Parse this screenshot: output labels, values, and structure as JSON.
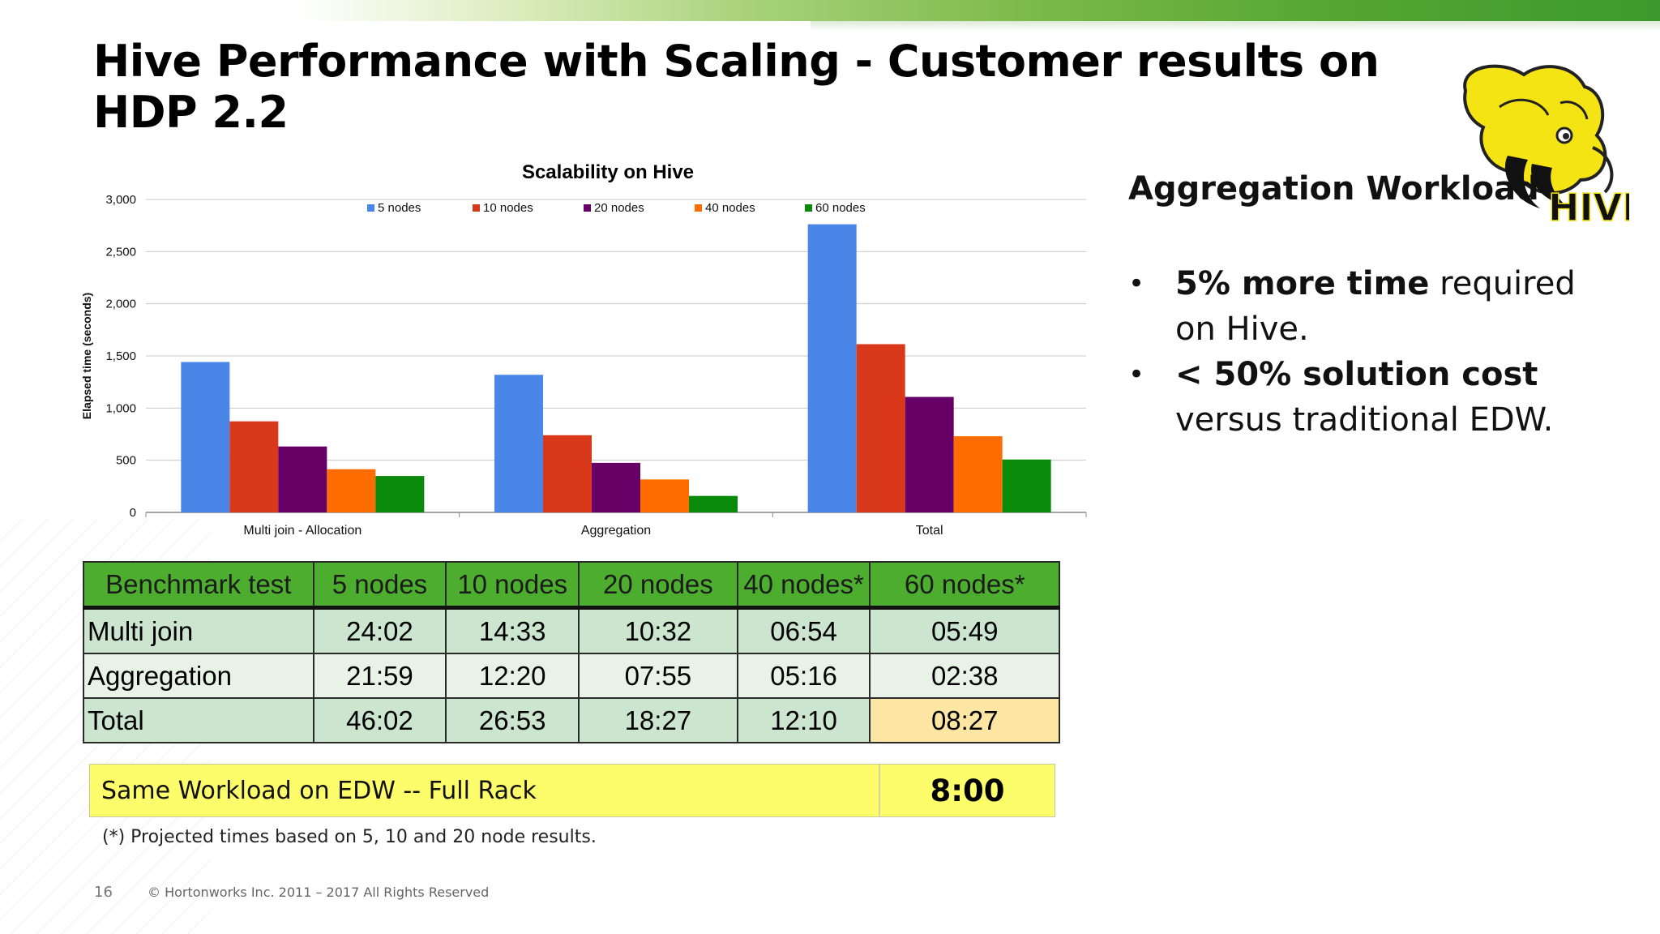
{
  "slide": {
    "title": "Hive Performance with Scaling - Customer results on HDP 2.2",
    "page_number": "16",
    "copyright": "© Hortonworks Inc. 2011 – 2017  All Rights Reserved",
    "accent_color": "#4cad2e"
  },
  "chart_data": {
    "type": "bar",
    "title": "Scalability on Hive",
    "xlabel": "",
    "ylabel": "Elapsed time (seconds)",
    "categories": [
      "Multi join - Allocation",
      "Aggregation",
      "Total"
    ],
    "ylim": [
      0,
      3000
    ],
    "yticks": [
      0,
      500,
      1000,
      1500,
      2000,
      2500,
      3000
    ],
    "ytick_labels": [
      "0",
      "500",
      "1,000",
      "1,500",
      "2,000",
      "2,500",
      "3,000"
    ],
    "grid": true,
    "legend_position": "top",
    "series": [
      {
        "name": "5 nodes",
        "color": "#4a86e8",
        "values": [
          1442,
          1319,
          2762
        ]
      },
      {
        "name": "10 nodes",
        "color": "#d9391a",
        "values": [
          873,
          740,
          1613
        ]
      },
      {
        "name": "20 nodes",
        "color": "#660066",
        "values": [
          632,
          475,
          1107
        ]
      },
      {
        "name": "40 nodes",
        "color": "#ff6d00",
        "values": [
          414,
          316,
          730
        ]
      },
      {
        "name": "60 nodes",
        "color": "#0a8a0a",
        "values": [
          349,
          158,
          507
        ]
      }
    ]
  },
  "workload": {
    "title": "Aggregation Workload",
    "bullets": [
      {
        "bold": "5% more time",
        "rest": " required on Hive."
      },
      {
        "bold": "< 50% solution cost",
        "rest": " versus traditional EDW."
      }
    ]
  },
  "logo": {
    "text": "HIVE",
    "icon": "hive-bee-elephant-logo"
  },
  "table": {
    "headers": [
      "Benchmark test",
      "5 nodes",
      "10 nodes",
      "20 nodes",
      "40 nodes*",
      "60 nodes*"
    ],
    "rows": [
      [
        "Multi join",
        "24:02",
        "14:33",
        "10:32",
        "06:54",
        "05:49"
      ],
      [
        "Aggregation",
        "21:59",
        "12:20",
        "07:55",
        "05:16",
        "02:38"
      ],
      [
        "Total",
        "46:02",
        "26:53",
        "18:27",
        "12:10",
        "08:27"
      ]
    ]
  },
  "edw": {
    "label": "Same Workload on EDW -- Full Rack",
    "value": "8:00"
  },
  "footnote": "(*) Projected times based on 5, 10 and 20 node results."
}
